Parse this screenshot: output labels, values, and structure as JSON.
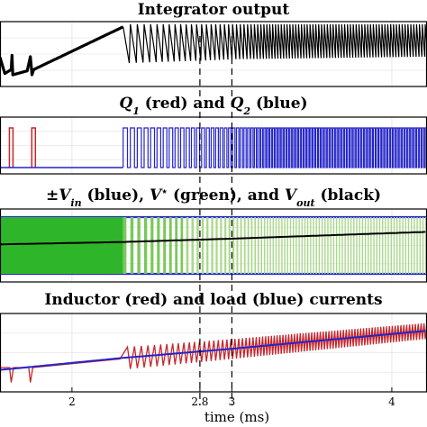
{
  "panels": [
    {
      "title": "Integrator output",
      "title_parts": [
        {
          "t": "Integrator output",
          "it": false
        }
      ],
      "traces": [
        {
          "kind": "integrator",
          "color": "#000000"
        }
      ]
    },
    {
      "title": "Q1 (red) and Q2 (blue)",
      "title_parts": [
        {
          "t": "Q",
          "it": true
        },
        {
          "t": "1",
          "sub": true
        },
        {
          "t": " (red) and ",
          "it": false
        },
        {
          "t": "Q",
          "it": true
        },
        {
          "t": "2",
          "sub": true
        },
        {
          "t": " (blue)",
          "it": false
        }
      ],
      "traces": [
        {
          "kind": "gate",
          "name": "Q1",
          "color": "#c8262d"
        },
        {
          "kind": "gate",
          "name": "Q2",
          "color": "#2424c8"
        }
      ]
    },
    {
      "title": "±Vin (blue), V* (green), and Vout (black)",
      "title_parts": [
        {
          "t": "±",
          "it": false
        },
        {
          "t": "V",
          "it": true
        },
        {
          "t": "in",
          "sub": true
        },
        {
          "t": " (blue), ",
          "it": false
        },
        {
          "t": "V",
          "it": true
        },
        {
          "t": "⋆",
          "sup": true
        },
        {
          "t": " (green), and ",
          "it": false
        },
        {
          "t": "V",
          "it": true
        },
        {
          "t": "out",
          "sub": true
        },
        {
          "t": " (black)",
          "it": false
        }
      ],
      "traces": [
        {
          "kind": "vin",
          "name": "±Vin",
          "color": "#2a2ad0"
        },
        {
          "kind": "vstar",
          "name": "V*",
          "color": "#2fb52a"
        },
        {
          "kind": "vout",
          "name": "Vout",
          "color": "#000000"
        }
      ]
    },
    {
      "title": "Inductor (red) and load (blue) currents",
      "title_parts": [
        {
          "t": "Inductor (red) and load (blue) currents",
          "it": false
        }
      ],
      "traces": [
        {
          "kind": "inductor",
          "name": "Inductor",
          "color": "#c8262d"
        },
        {
          "kind": "load",
          "name": "load",
          "color": "#2424c8"
        }
      ]
    }
  ],
  "chart_data": {
    "type": "line",
    "xlabel": "time (ms)",
    "xlim": [
      1.55,
      4.22
    ],
    "xticks": [
      2,
      2.8,
      3,
      4
    ],
    "xtick_labels": [
      "2",
      "2.8",
      "3",
      "4"
    ],
    "markers": [
      2.8,
      3.0
    ],
    "grid": true,
    "events": {
      "q1_pulses_ms": [
        1.62,
        1.76
      ],
      "integrator_kinks_ms": [
        1.62,
        1.74
      ],
      "continuous_switching_start_ms": 2.32,
      "vstar_dense_until_ms": 2.32
    },
    "trends": {
      "vout_normalized": {
        "x": [
          1.55,
          2.3,
          3.0,
          4.22
        ],
        "y": [
          0.52,
          0.56,
          0.62,
          0.74
        ]
      },
      "load_current_normalized": {
        "x": [
          1.55,
          2.3,
          3.0,
          4.22
        ],
        "y": [
          0.28,
          0.43,
          0.55,
          0.78
        ]
      },
      "integrator_envelope_low_normalized": {
        "x": [
          1.55,
          2.3,
          2.8,
          3.0,
          4.22
        ],
        "y": [
          0.22,
          0.36,
          0.4,
          0.42,
          0.46
        ]
      }
    }
  }
}
